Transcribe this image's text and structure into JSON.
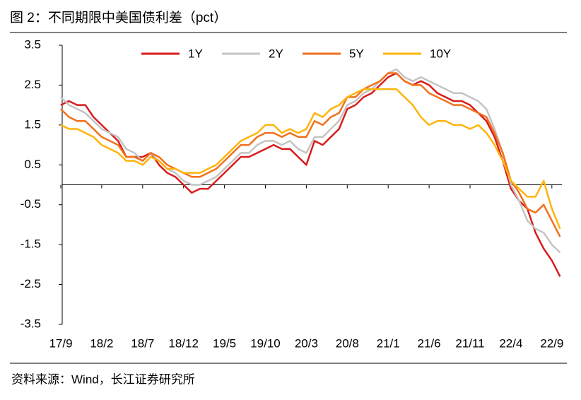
{
  "chart_data": {
    "type": "line",
    "title": "图 2：不同期限中美国债利差（pct）",
    "source": "资料来源：Wind，长江证券研究所",
    "categories": [
      "17/9",
      null,
      null,
      null,
      null,
      "18/2",
      null,
      null,
      null,
      null,
      "18/7",
      null,
      null,
      null,
      null,
      "18/12",
      null,
      null,
      null,
      null,
      "19/5",
      null,
      null,
      null,
      null,
      "19/10",
      null,
      null,
      null,
      null,
      "20/3",
      null,
      null,
      null,
      null,
      "20/8",
      null,
      null,
      null,
      null,
      "21/1",
      null,
      null,
      null,
      null,
      "21/6",
      null,
      null,
      null,
      null,
      "21/11",
      null,
      null,
      null,
      null,
      "22/4",
      null,
      null,
      null,
      null,
      "22/9",
      null
    ],
    "ylim": [
      -3.5,
      3.5
    ],
    "yticks": [
      3.5,
      2.5,
      1.5,
      0.5,
      -0.5,
      -1.5,
      -2.5,
      -3.5
    ],
    "series": [
      {
        "name": "1Y",
        "color": "#d91c1c",
        "values": [
          2.0,
          2.1,
          2.0,
          2.0,
          1.7,
          1.5,
          1.3,
          1.1,
          0.7,
          0.7,
          0.7,
          0.8,
          0.5,
          0.3,
          0.2,
          0.0,
          -0.2,
          -0.1,
          -0.1,
          0.1,
          0.3,
          0.5,
          0.7,
          0.7,
          0.8,
          0.9,
          1.0,
          0.9,
          0.9,
          0.7,
          0.5,
          1.1,
          1.0,
          1.2,
          1.4,
          1.9,
          2.0,
          2.2,
          2.3,
          2.5,
          2.7,
          2.8,
          2.6,
          2.5,
          2.6,
          2.5,
          2.3,
          2.2,
          2.1,
          2.1,
          2.0,
          1.8,
          1.6,
          1.2,
          0.6,
          -0.1,
          -0.4,
          -0.6,
          -1.2,
          -1.6,
          -1.9,
          -2.3
        ]
      },
      {
        "name": "2Y",
        "color": "#c4c4c4",
        "values": [
          2.2,
          2.0,
          1.9,
          1.8,
          1.6,
          1.4,
          1.3,
          1.2,
          0.9,
          0.8,
          0.6,
          0.8,
          0.6,
          0.4,
          0.3,
          0.1,
          0.0,
          0.0,
          0.1,
          0.2,
          0.4,
          0.6,
          0.8,
          0.8,
          1.0,
          1.1,
          1.1,
          1.0,
          1.1,
          0.9,
          0.8,
          1.2,
          1.2,
          1.4,
          1.6,
          2.0,
          2.1,
          2.3,
          2.4,
          2.6,
          2.8,
          2.9,
          2.7,
          2.6,
          2.7,
          2.6,
          2.5,
          2.4,
          2.3,
          2.3,
          2.2,
          2.1,
          1.9,
          1.4,
          0.8,
          0.0,
          -0.4,
          -0.9,
          -1.1,
          -1.2,
          -1.5,
          -1.7
        ]
      },
      {
        "name": "5Y",
        "color": "#f2711c",
        "values": [
          1.9,
          1.7,
          1.6,
          1.6,
          1.4,
          1.2,
          1.1,
          1.0,
          0.7,
          0.7,
          0.6,
          0.8,
          0.7,
          0.5,
          0.4,
          0.3,
          0.2,
          0.2,
          0.3,
          0.4,
          0.6,
          0.8,
          1.0,
          1.0,
          1.2,
          1.3,
          1.3,
          1.2,
          1.3,
          1.2,
          1.2,
          1.6,
          1.5,
          1.7,
          1.8,
          2.2,
          2.2,
          2.4,
          2.5,
          2.6,
          2.8,
          2.8,
          2.6,
          2.5,
          2.5,
          2.3,
          2.2,
          2.1,
          2.0,
          2.0,
          1.9,
          1.8,
          1.7,
          1.3,
          0.8,
          0.1,
          -0.2,
          -0.6,
          -0.7,
          -0.5,
          -0.9,
          -1.3
        ]
      },
      {
        "name": "10Y",
        "color": "#ffb40a",
        "values": [
          1.5,
          1.4,
          1.4,
          1.3,
          1.2,
          1.0,
          0.9,
          0.8,
          0.6,
          0.6,
          0.5,
          0.7,
          0.6,
          0.4,
          0.4,
          0.3,
          0.3,
          0.3,
          0.4,
          0.5,
          0.7,
          0.9,
          1.1,
          1.2,
          1.3,
          1.5,
          1.5,
          1.3,
          1.4,
          1.3,
          1.4,
          1.8,
          1.7,
          1.9,
          2.0,
          2.2,
          2.3,
          2.4,
          2.4,
          2.4,
          2.4,
          2.4,
          2.2,
          2.0,
          1.7,
          1.5,
          1.6,
          1.6,
          1.5,
          1.5,
          1.4,
          1.5,
          1.3,
          1.0,
          0.6,
          0.1,
          -0.1,
          -0.3,
          -0.3,
          0.1,
          -0.6,
          -1.1
        ]
      }
    ]
  }
}
